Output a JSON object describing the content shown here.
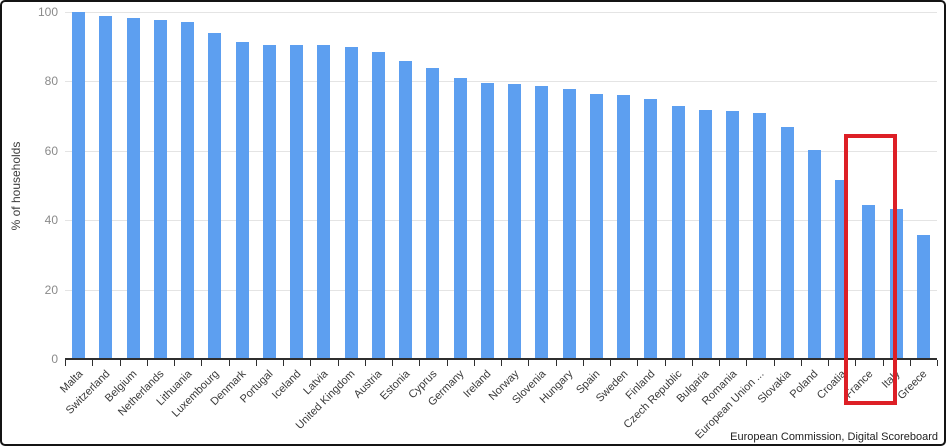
{
  "chart_data": {
    "type": "bar",
    "title": "",
    "xlabel": "",
    "ylabel": "% of households",
    "ylim": [
      0,
      100
    ],
    "yticks": [
      0,
      20,
      40,
      60,
      80,
      100
    ],
    "grid": true,
    "legend_position": "none",
    "bar_color": "#5d9ff0",
    "categories": [
      "Malta",
      "Switzerland",
      "Belgium",
      "Netherlands",
      "Lithuania",
      "Luxembourg",
      "Denmark",
      "Portugal",
      "Iceland",
      "Latvia",
      "United Kingdom",
      "Austria",
      "Estonia",
      "Cyprus",
      "Germany",
      "Ireland",
      "Norway",
      "Slovenia",
      "Hungary",
      "Spain",
      "Sweden",
      "Finland",
      "Czech Republic",
      "Bulgaria",
      "Romania",
      "European Union ...",
      "Slovakia",
      "Poland",
      "Croatia",
      "France",
      "Italy",
      "Greece"
    ],
    "values": [
      100,
      98.8,
      98.4,
      97.8,
      97,
      94,
      91.3,
      90.6,
      90.4,
      90.4,
      90,
      88.4,
      86,
      84,
      81,
      79.5,
      79.2,
      78.6,
      77.7,
      76.3,
      76,
      75,
      72.8,
      71.9,
      71.6,
      71,
      66.8,
      60.3,
      51.5,
      44.4,
      43.3,
      35.8
    ],
    "annotation": {
      "type": "highlight-box",
      "category": "France",
      "color": "#dd1f26"
    }
  },
  "attribution": "European Commission, Digital Scoreboard"
}
